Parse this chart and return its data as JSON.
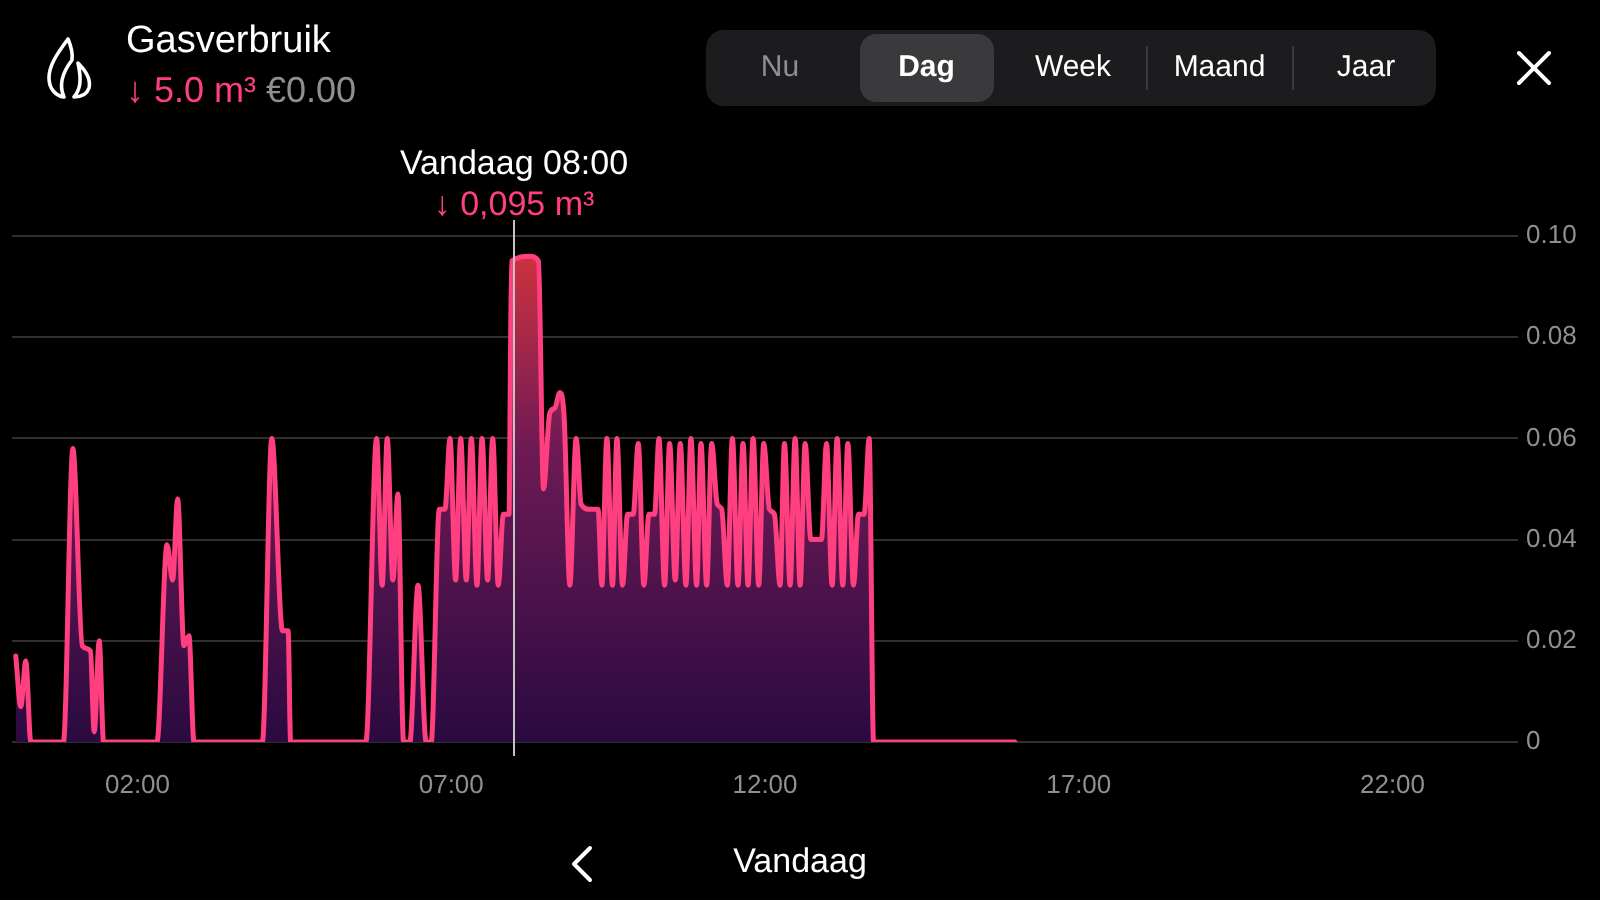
{
  "chart_data": {
    "type": "area",
    "title": "Gasverbruik",
    "subtitle": "↓ 5.0 m³ €0.00",
    "x": [
      0.06,
      0.14,
      0.22,
      0.3,
      0.82,
      0.97,
      1.12,
      1.25,
      1.31,
      1.39,
      1.46,
      2.31,
      2.47,
      2.56,
      2.64,
      2.74,
      2.82,
      2.9,
      3.99,
      4.14,
      4.31,
      4.4,
      4.44,
      5.64,
      5.81,
      5.9,
      5.98,
      6.07,
      6.15,
      6.24,
      6.34,
      6.47,
      6.6,
      6.68,
      6.81,
      6.9,
      6.98,
      7.07,
      7.15,
      7.24,
      7.32,
      7.41,
      7.49,
      7.58,
      7.66,
      7.75,
      7.83,
      7.92,
      7.96,
      8.26,
      8.39,
      8.47,
      8.57,
      8.65,
      8.73,
      8.8,
      8.89,
      8.99,
      9.07,
      9.21,
      9.34,
      9.4,
      9.48,
      9.57,
      9.64,
      9.73,
      9.81,
      9.9,
      9.98,
      10.07,
      10.15,
      10.24,
      10.31,
      10.4,
      10.48,
      10.57,
      10.65,
      10.74,
      10.82,
      10.91,
      10.98,
      11.07,
      11.15,
      11.24,
      11.31,
      11.4,
      11.48,
      11.57,
      11.65,
      11.73,
      11.81,
      11.9,
      11.98,
      12.07,
      12.15,
      12.24,
      12.31,
      12.4,
      12.48,
      12.56,
      12.64,
      12.73,
      12.9,
      12.98,
      13.07,
      13.15,
      13.24,
      13.32,
      13.41,
      13.49,
      13.58,
      13.66,
      13.73,
      15.98
    ],
    "series": [
      {
        "color": "#ff3f7f",
        "values": [
          0.017,
          0.007,
          0.016,
          0,
          0,
          0.058,
          0.019,
          0.018,
          0.002,
          0.02,
          0,
          0,
          0.039,
          0.032,
          0.048,
          0.019,
          0.021,
          0,
          0,
          0.06,
          0.022,
          0.022,
          0,
          0,
          0.06,
          0.031,
          0.06,
          0.032,
          0.049,
          0,
          0,
          0.031,
          0,
          0,
          0.046,
          0.046,
          0.06,
          0.032,
          0.06,
          0.032,
          0.06,
          0.031,
          0.06,
          0.032,
          0.06,
          0.031,
          0.045,
          0.045,
          0.095,
          0.096,
          0.095,
          0.05,
          0.065,
          0.066,
          0.069,
          0.064,
          0.031,
          0.06,
          0.047,
          0.046,
          0.046,
          0.031,
          0.06,
          0.031,
          0.06,
          0.031,
          0.045,
          0.045,
          0.059,
          0.031,
          0.045,
          0.045,
          0.06,
          0.031,
          0.059,
          0.032,
          0.059,
          0.031,
          0.06,
          0.031,
          0.059,
          0.031,
          0.059,
          0.047,
          0.046,
          0.031,
          0.06,
          0.031,
          0.059,
          0.031,
          0.06,
          0.031,
          0.059,
          0.046,
          0.045,
          0.031,
          0.059,
          0.031,
          0.06,
          0.031,
          0.059,
          0.04,
          0.04,
          0.059,
          0.031,
          0.06,
          0.031,
          0.059,
          0.031,
          0.045,
          0.045,
          0.06,
          0,
          0
        ]
      }
    ],
    "xlim": [
      0,
      24
    ],
    "xticks": [
      {
        "value": 2,
        "label": "02:00"
      },
      {
        "value": 7,
        "label": "07:00"
      },
      {
        "value": 12,
        "label": "12:00"
      },
      {
        "value": 17,
        "label": "17:00"
      },
      {
        "value": 22,
        "label": "22:00"
      }
    ],
    "ylim": [
      0,
      0.1
    ],
    "yticks": [
      0,
      0.02,
      0.04,
      0.06,
      0.08,
      {
        "value": 0.1,
        "label": "0.10"
      }
    ],
    "grid": "y",
    "ref_lines": [
      {
        "axis": "x",
        "value": 8,
        "label": "Vandaag 08:00",
        "color": "#c4c4c4"
      }
    ],
    "annotations": [
      {
        "text": "↓ 0,095 m³",
        "x": 8,
        "y": 0.095
      },
      "Nu",
      "Dag",
      "Week",
      "Maand",
      "Jaar",
      "Vandaag"
    ]
  }
}
